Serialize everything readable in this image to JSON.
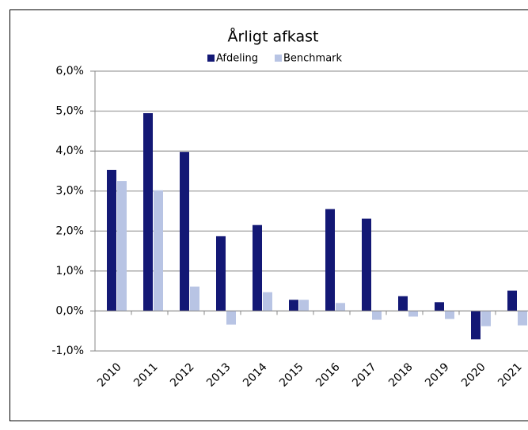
{
  "chart_data": {
    "type": "bar",
    "title": "Årligt afkast",
    "categories": [
      "2010",
      "2011",
      "2012",
      "2013",
      "2014",
      "2015",
      "2016",
      "2017",
      "2018",
      "2019",
      "2020",
      "2021"
    ],
    "series": [
      {
        "name": "Afdeling",
        "color": "#131875",
        "values": [
          3.53,
          4.95,
          3.98,
          1.87,
          2.15,
          0.28,
          2.55,
          2.31,
          0.37,
          0.22,
          -0.71,
          0.51
        ]
      },
      {
        "name": "Benchmark",
        "color": "#b8c4e4",
        "values": [
          3.25,
          3.02,
          0.61,
          -0.34,
          0.47,
          0.28,
          0.2,
          -0.22,
          -0.14,
          -0.2,
          -0.38,
          -0.36
        ]
      }
    ],
    "ylim": [
      -1,
      6
    ],
    "yticks": [
      {
        "value": -1,
        "label": "-1,0%"
      },
      {
        "value": 0,
        "label": "0,0%"
      },
      {
        "value": 1,
        "label": "1,0%"
      },
      {
        "value": 2,
        "label": "2,0%"
      },
      {
        "value": 3,
        "label": "3,0%"
      },
      {
        "value": 4,
        "label": "4,0%"
      },
      {
        "value": 5,
        "label": "5,0%"
      },
      {
        "value": 6,
        "label": "6,0%"
      }
    ],
    "grid": true
  }
}
